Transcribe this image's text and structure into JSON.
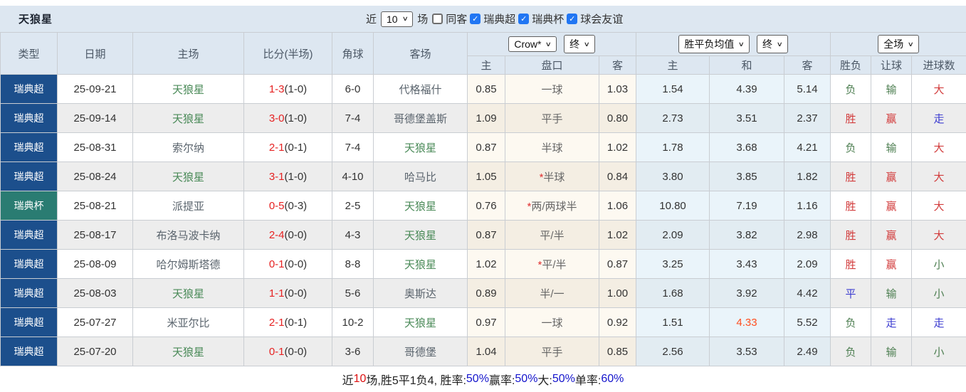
{
  "title": "天狼星",
  "topbar": {
    "near_label": "近",
    "recent_count": "10",
    "games_label": "场",
    "checkboxes": [
      {
        "label": "同客",
        "checked": false
      },
      {
        "label": "瑞典超",
        "checked": true
      },
      {
        "label": "瑞典杯",
        "checked": true
      },
      {
        "label": "球会友谊",
        "checked": true
      }
    ]
  },
  "controls": {
    "bookmaker_select": "Crow*",
    "bookmaker_state_select": "终",
    "avg_select": "胜平负均值",
    "avg_state_select": "终",
    "scope_select": "全场"
  },
  "table": {
    "headers": [
      "类型",
      "日期",
      "主场",
      "比分(半场)",
      "角球",
      "客场"
    ],
    "sub_headers": [
      "主",
      "盘口",
      "客",
      "主",
      "和",
      "客",
      "胜负",
      "让球",
      "进球数"
    ],
    "rows": [
      {
        "type": "瑞典超",
        "league": "super",
        "date": "25-09-21",
        "home": "天狼星",
        "home_self": true,
        "score": "1-3",
        "half": "(1-0)",
        "corner": "6-0",
        "away": "代格福什",
        "away_self": false,
        "odds_home": "0.85",
        "line": "一球",
        "line_star": false,
        "odds_away": "1.03",
        "avg_home": "1.54",
        "avg_draw": "4.39",
        "avg_away": "5.14",
        "avg_draw_hot": false,
        "result": {
          "text": "负",
          "c": "green"
        },
        "handicap_result": {
          "text": "输",
          "c": "green"
        },
        "goals": {
          "text": "大",
          "c": "red"
        }
      },
      {
        "type": "瑞典超",
        "league": "super",
        "date": "25-09-14",
        "home": "天狼星",
        "home_self": true,
        "score": "3-0",
        "half": "(1-0)",
        "corner": "7-4",
        "away": "哥德堡盖斯",
        "away_self": false,
        "odds_home": "1.09",
        "line": "平手",
        "line_star": false,
        "odds_away": "0.80",
        "avg_home": "2.73",
        "avg_draw": "3.51",
        "avg_away": "2.37",
        "avg_draw_hot": false,
        "result": {
          "text": "胜",
          "c": "red"
        },
        "handicap_result": {
          "text": "赢",
          "c": "red"
        },
        "goals": {
          "text": "走",
          "c": "blue"
        }
      },
      {
        "type": "瑞典超",
        "league": "super",
        "date": "25-08-31",
        "home": "索尔纳",
        "home_self": false,
        "score": "2-1",
        "half": "(0-1)",
        "corner": "7-4",
        "away": "天狼星",
        "away_self": true,
        "odds_home": "0.87",
        "line": "半球",
        "line_star": false,
        "odds_away": "1.02",
        "avg_home": "1.78",
        "avg_draw": "3.68",
        "avg_away": "4.21",
        "avg_draw_hot": false,
        "result": {
          "text": "负",
          "c": "green"
        },
        "handicap_result": {
          "text": "输",
          "c": "green"
        },
        "goals": {
          "text": "大",
          "c": "red"
        }
      },
      {
        "type": "瑞典超",
        "league": "super",
        "date": "25-08-24",
        "home": "天狼星",
        "home_self": true,
        "score": "3-1",
        "half": "(1-0)",
        "corner": "4-10",
        "away": "哈马比",
        "away_self": false,
        "odds_home": "1.05",
        "line": "半球",
        "line_star": true,
        "odds_away": "0.84",
        "avg_home": "3.80",
        "avg_draw": "3.85",
        "avg_away": "1.82",
        "avg_draw_hot": false,
        "result": {
          "text": "胜",
          "c": "red"
        },
        "handicap_result": {
          "text": "赢",
          "c": "red"
        },
        "goals": {
          "text": "大",
          "c": "red"
        }
      },
      {
        "type": "瑞典杯",
        "league": "cup",
        "date": "25-08-21",
        "home": "派提亚",
        "home_self": false,
        "score": "0-5",
        "half": "(0-3)",
        "corner": "2-5",
        "away": "天狼星",
        "away_self": true,
        "odds_home": "0.76",
        "line": "两/两球半",
        "line_star": true,
        "odds_away": "1.06",
        "avg_home": "10.80",
        "avg_draw": "7.19",
        "avg_away": "1.16",
        "avg_draw_hot": false,
        "result": {
          "text": "胜",
          "c": "red"
        },
        "handicap_result": {
          "text": "赢",
          "c": "red"
        },
        "goals": {
          "text": "大",
          "c": "red"
        }
      },
      {
        "type": "瑞典超",
        "league": "super",
        "date": "25-08-17",
        "home": "布洛马波卡纳",
        "home_self": false,
        "score": "2-4",
        "half": "(0-0)",
        "corner": "4-3",
        "away": "天狼星",
        "away_self": true,
        "odds_home": "0.87",
        "line": "平/半",
        "line_star": false,
        "odds_away": "1.02",
        "avg_home": "2.09",
        "avg_draw": "3.82",
        "avg_away": "2.98",
        "avg_draw_hot": false,
        "result": {
          "text": "胜",
          "c": "red"
        },
        "handicap_result": {
          "text": "赢",
          "c": "red"
        },
        "goals": {
          "text": "大",
          "c": "red"
        }
      },
      {
        "type": "瑞典超",
        "league": "super",
        "date": "25-08-09",
        "home": "哈尔姆斯塔德",
        "home_self": false,
        "score": "0-1",
        "half": "(0-0)",
        "corner": "8-8",
        "away": "天狼星",
        "away_self": true,
        "odds_home": "1.02",
        "line": "平/半",
        "line_star": true,
        "odds_away": "0.87",
        "avg_home": "3.25",
        "avg_draw": "3.43",
        "avg_away": "2.09",
        "avg_draw_hot": false,
        "result": {
          "text": "胜",
          "c": "red"
        },
        "handicap_result": {
          "text": "赢",
          "c": "red"
        },
        "goals": {
          "text": "小",
          "c": "green"
        }
      },
      {
        "type": "瑞典超",
        "league": "super",
        "date": "25-08-03",
        "home": "天狼星",
        "home_self": true,
        "score": "1-1",
        "half": "(0-0)",
        "corner": "5-6",
        "away": "奥斯达",
        "away_self": false,
        "odds_home": "0.89",
        "line": "半/一",
        "line_star": false,
        "odds_away": "1.00",
        "avg_home": "1.68",
        "avg_draw": "3.92",
        "avg_away": "4.42",
        "avg_draw_hot": false,
        "result": {
          "text": "平",
          "c": "blue"
        },
        "handicap_result": {
          "text": "输",
          "c": "green"
        },
        "goals": {
          "text": "小",
          "c": "green"
        }
      },
      {
        "type": "瑞典超",
        "league": "super",
        "date": "25-07-27",
        "home": "米亚尔比",
        "home_self": false,
        "score": "2-1",
        "half": "(0-1)",
        "corner": "10-2",
        "away": "天狼星",
        "away_self": true,
        "odds_home": "0.97",
        "line": "一球",
        "line_star": false,
        "odds_away": "0.92",
        "avg_home": "1.51",
        "avg_draw": "4.33",
        "avg_away": "5.52",
        "avg_draw_hot": true,
        "result": {
          "text": "负",
          "c": "green"
        },
        "handicap_result": {
          "text": "走",
          "c": "blue"
        },
        "goals": {
          "text": "走",
          "c": "blue"
        }
      },
      {
        "type": "瑞典超",
        "league": "super",
        "date": "25-07-20",
        "home": "天狼星",
        "home_self": true,
        "score": "0-1",
        "half": "(0-0)",
        "corner": "3-6",
        "away": "哥德堡",
        "away_self": false,
        "odds_home": "1.04",
        "line": "平手",
        "line_star": false,
        "odds_away": "0.85",
        "avg_home": "2.56",
        "avg_draw": "3.53",
        "avg_away": "2.49",
        "avg_draw_hot": false,
        "result": {
          "text": "负",
          "c": "green"
        },
        "handicap_result": {
          "text": "输",
          "c": "green"
        },
        "goals": {
          "text": "小",
          "c": "green"
        }
      }
    ]
  },
  "footer": {
    "segments": [
      {
        "text": "近",
        "color": "dark"
      },
      {
        "text": "10",
        "color": "red"
      },
      {
        "text": "场,胜5平1负4, 胜率:",
        "color": "dark"
      },
      {
        "text": "50%",
        "color": "blue"
      },
      {
        "text": " 赢率:",
        "color": "dark"
      },
      {
        "text": "50%",
        "color": "blue"
      },
      {
        "text": " 大:",
        "color": "dark"
      },
      {
        "text": "50%",
        "color": "blue"
      },
      {
        "text": " 单率:",
        "color": "dark"
      },
      {
        "text": "60%",
        "color": "blue"
      }
    ]
  },
  "colors": {
    "league_super": "#1c4f8c",
    "league_cup": "#2a7c72",
    "win_red": "#d23c3c",
    "lose_green": "#4e7f52",
    "draw_blue": "#3c3cd0",
    "score_red": "#e62222",
    "hot_orange": "#ff4e20",
    "self_team_green": "#4a8a58"
  }
}
